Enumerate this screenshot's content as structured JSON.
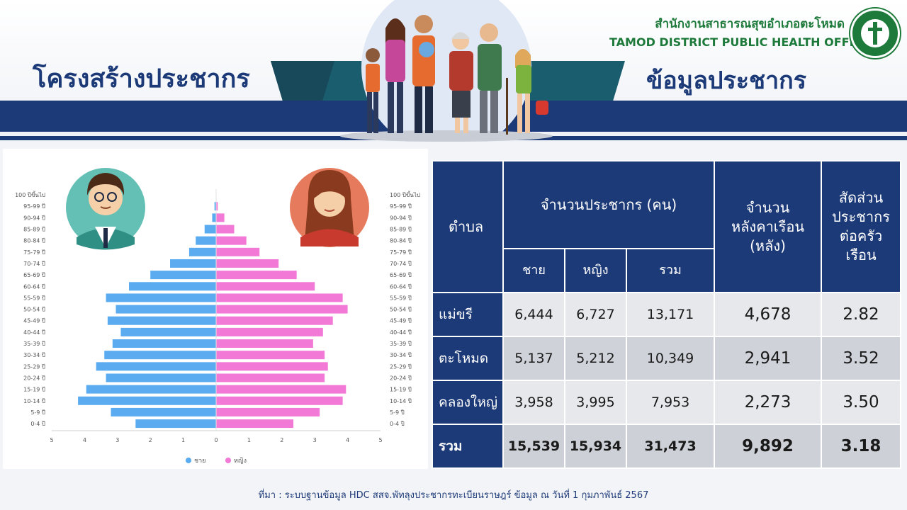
{
  "header": {
    "left_title": "โครงสร้างประชากร",
    "right_title": "ข้อมูลประชากร",
    "office_th": "สำนักงานสาธารณสุขอำเภอตะโหมด",
    "office_en": "TAMOD DISTRICT PUBLIC HEALTH OFFICE"
  },
  "chart_data": {
    "type": "bar",
    "orientation": "horizontal",
    "categories": [
      "100 ปีขึ้นไป",
      "95-99 ปี",
      "90-94 ปี",
      "85-89 ปี",
      "80-84 ปี",
      "75-79 ปี",
      "70-74 ปี",
      "65-69 ปี",
      "60-64 ปี",
      "55-59 ปี",
      "50-54 ปี",
      "45-49 ปี",
      "40-44 ปี",
      "35-39 ปี",
      "30-34 ปี",
      "25-29 ปี",
      "20-24 ปี",
      "15-19 ปี",
      "10-14 ปี",
      "5-9 ปี",
      "0-4 ปี"
    ],
    "series": [
      {
        "name": "ชาย",
        "color": "#5aabf0",
        "values": [
          0,
          0.05,
          0.12,
          0.35,
          0.62,
          0.82,
          1.4,
          2.0,
          2.65,
          3.35,
          3.05,
          3.3,
          2.9,
          3.15,
          3.4,
          3.65,
          3.35,
          3.95,
          4.2,
          3.2,
          2.45
        ]
      },
      {
        "name": "หญิง",
        "color": "#f27ad6",
        "values": [
          0,
          0.05,
          0.25,
          0.55,
          0.92,
          1.32,
          1.9,
          2.45,
          3.0,
          3.85,
          4.0,
          3.55,
          3.25,
          2.95,
          3.3,
          3.4,
          3.3,
          3.95,
          3.85,
          3.15,
          2.35
        ]
      }
    ],
    "xlim": [
      -5,
      5
    ],
    "x_ticks": [
      "5",
      "4",
      "3",
      "2",
      "1",
      "0",
      "1",
      "2",
      "3",
      "4",
      "5"
    ],
    "legend": [
      "ชาย",
      "หญิง"
    ],
    "legend_position": "bottom"
  },
  "table": {
    "headers": {
      "tambon": "ตำบล",
      "population": "จำนวนประชากร (คน)",
      "male": "ชาย",
      "female": "หญิง",
      "total": "รวม",
      "households": "จำนวนหลังคาเรือน (หลัง)",
      "ratio": "สัดส่วนประชากรต่อครัวเรือน"
    },
    "rows": [
      {
        "name": "แม่ขรี",
        "male": "6,444",
        "female": "6,727",
        "total": "13,171",
        "households": "4,678",
        "ratio": "2.82"
      },
      {
        "name": "ตะโหมด",
        "male": "5,137",
        "female": "5,212",
        "total": "10,349",
        "households": "2,941",
        "ratio": "3.52"
      },
      {
        "name": "คลองใหญ่",
        "male": "3,958",
        "female": "3,995",
        "total": "7,953",
        "households": "2,273",
        "ratio": "3.50"
      }
    ],
    "total_row": {
      "name": "รวม",
      "male": "15,539",
      "female": "15,934",
      "total": "31,473",
      "households": "9,892",
      "ratio": "3.18"
    }
  },
  "footer": "ที่มา :  ระบบฐานข้อมูล HDC สสจ.พัทลุงประชากรทะเบียนราษฎร์  ข้อมูล  ณ วันที่  1 กุมภาพันธ์ 2567",
  "colors": {
    "navy": "#1c3a78",
    "green": "#1e7a3a",
    "male": "#5aabf0",
    "female": "#f27ad6"
  }
}
